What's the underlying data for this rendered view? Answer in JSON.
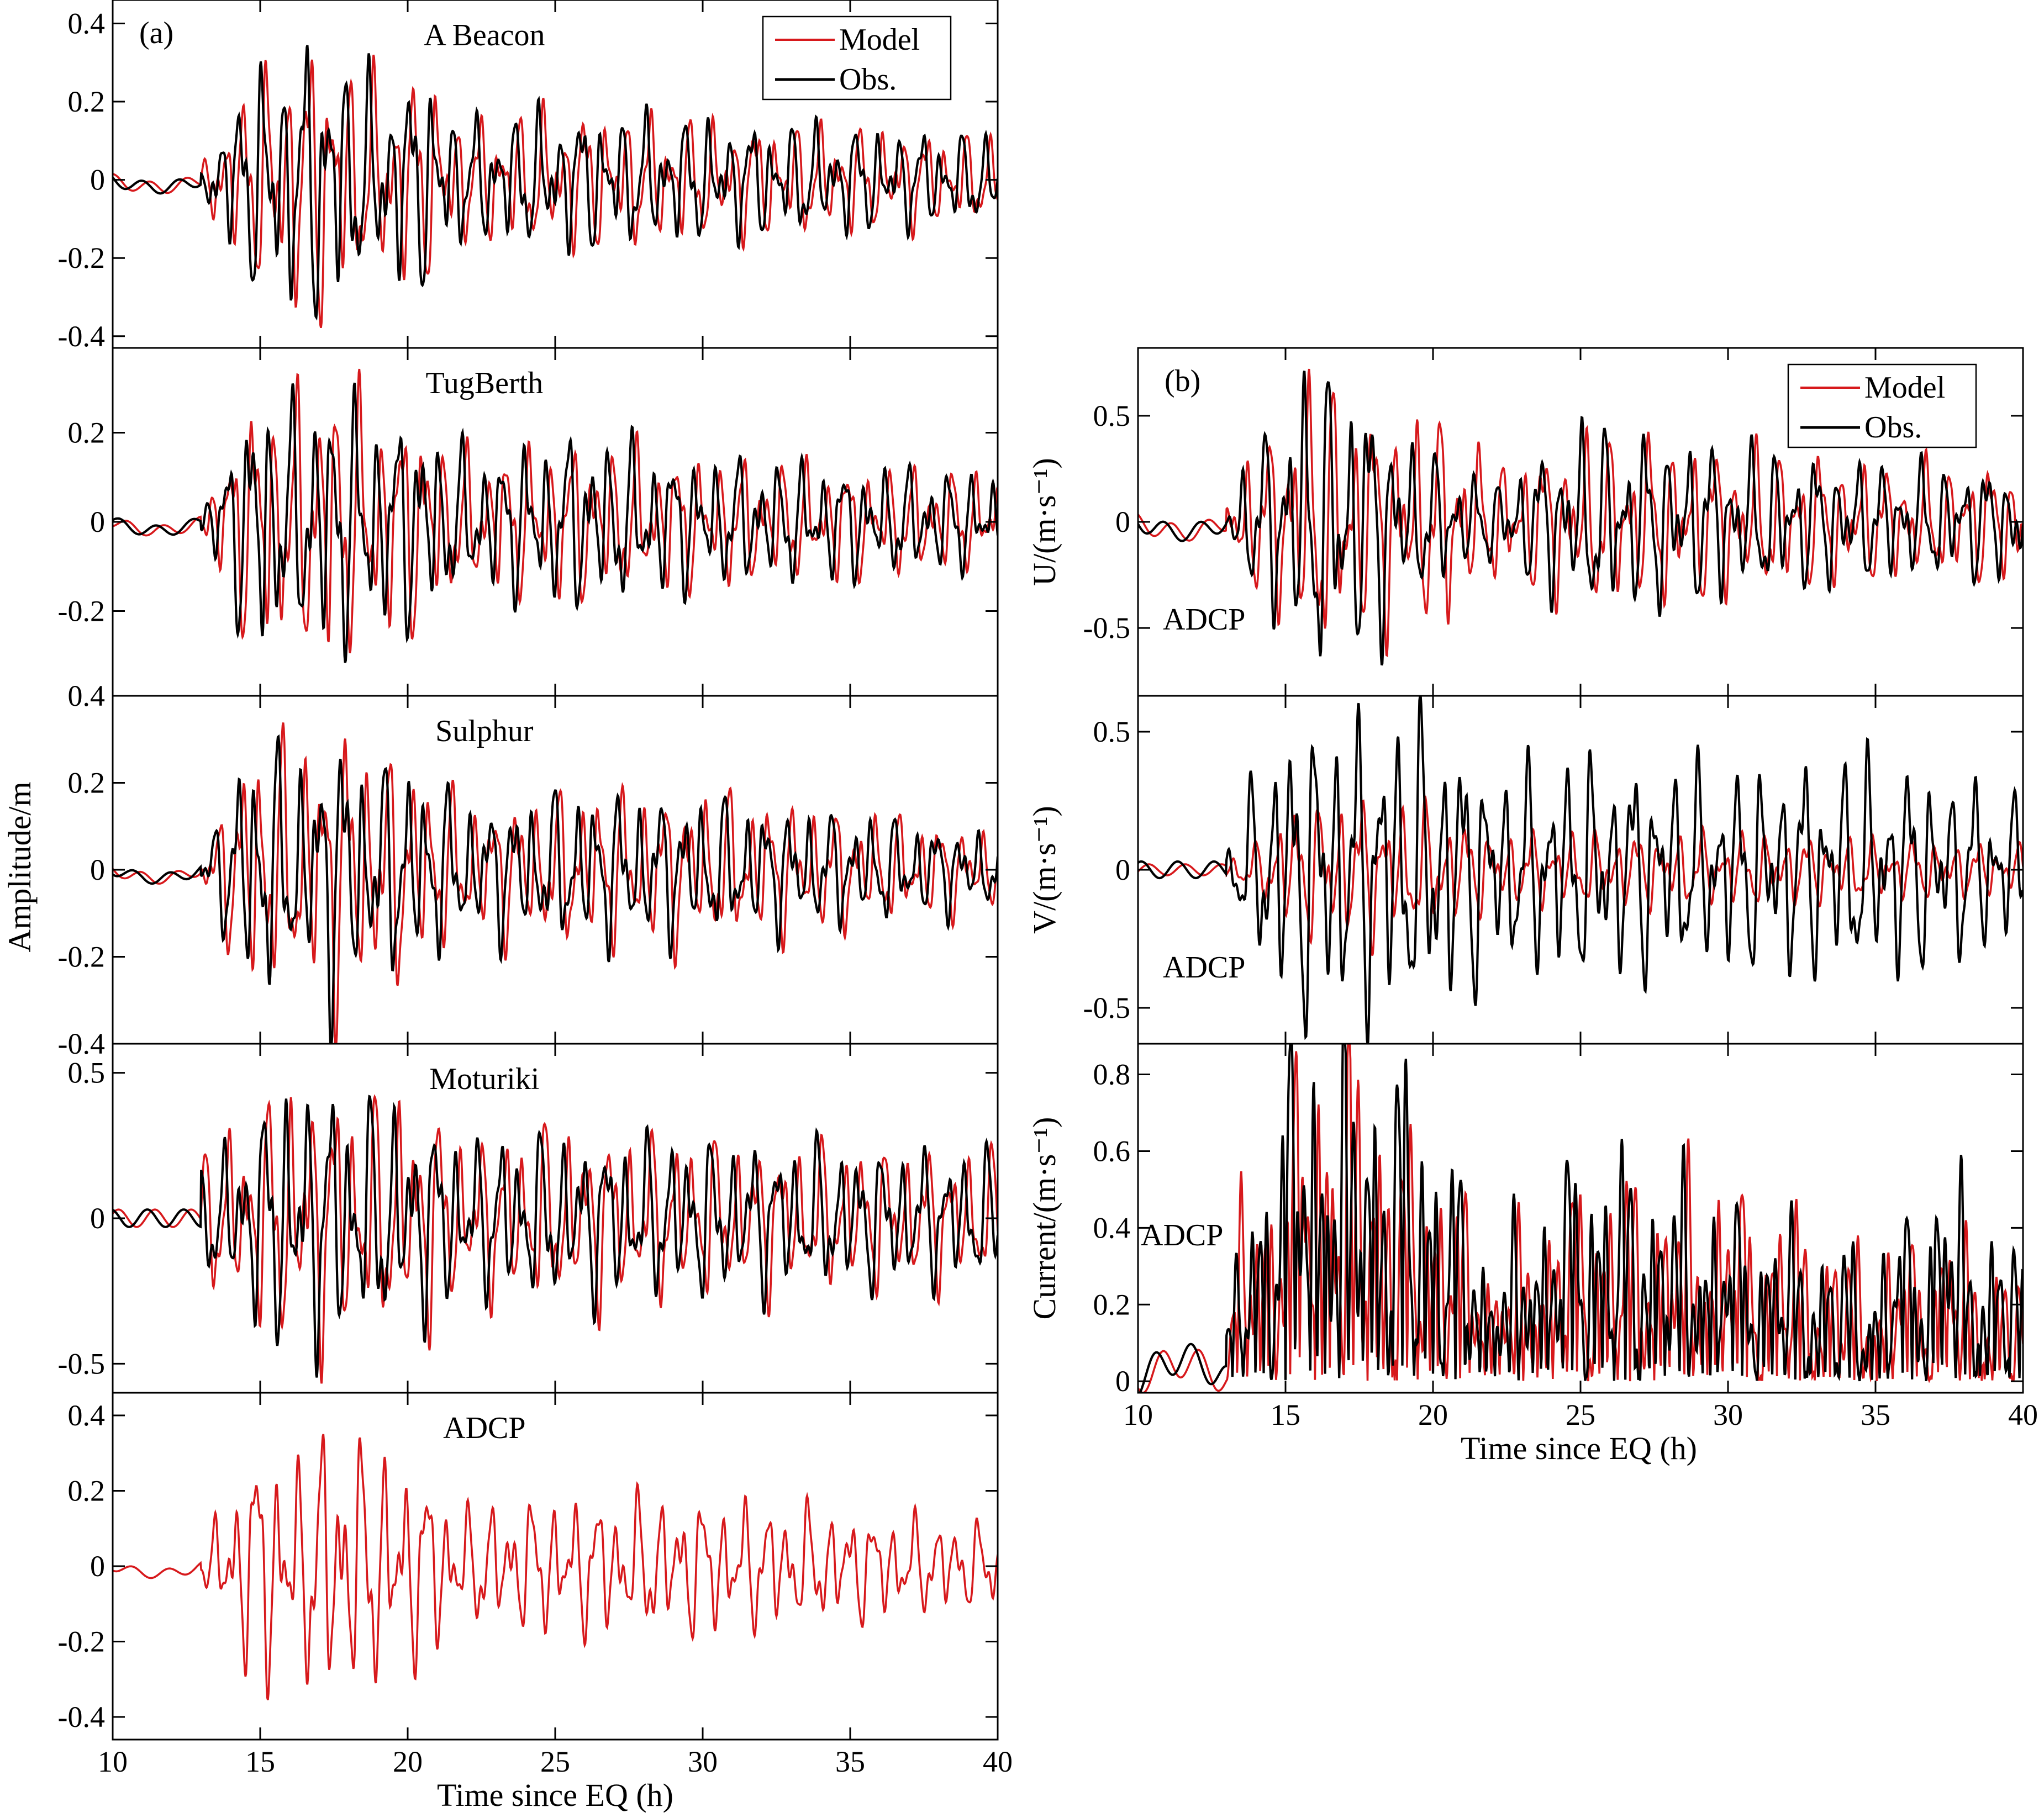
{
  "figure": {
    "colors": {
      "model": "#d7191c",
      "obs": "#000000"
    },
    "left_ylabel": "Amplitude/m",
    "left_xlabel": "Time since EQ (h)",
    "right_xlabel": "Time since EQ (h)"
  },
  "chart_data": [
    {
      "type": "line",
      "panel": "a",
      "tag": "(a)",
      "title": "A Beacon",
      "ylabel": "",
      "xlim": [
        10,
        40
      ],
      "ylim": [
        -0.43,
        0.46
      ],
      "yticks": [
        -0.4,
        -0.2,
        0,
        0.2,
        0.4
      ],
      "xticks": [
        10,
        15,
        20,
        25,
        30,
        35,
        40
      ],
      "show_xticklabels": false,
      "legend": {
        "position": "top-right",
        "entries": [
          "Model",
          "Obs."
        ]
      },
      "series": [
        {
          "name": "Model",
          "color": "#d7191c",
          "quiet_amp": 0.015,
          "quiet_offset": -0.02,
          "envelope": [
            [
              10,
              0.015
            ],
            [
              13,
              0.02
            ],
            [
              13.5,
              0.15
            ],
            [
              15,
              0.3
            ],
            [
              15.5,
              0.35
            ],
            [
              17.5,
              0.4
            ],
            [
              18.5,
              0.28
            ],
            [
              20.5,
              0.3
            ],
            [
              22,
              0.17
            ],
            [
              25,
              0.2
            ],
            [
              30,
              0.17
            ],
            [
              35,
              0.15
            ],
            [
              40,
              0.12
            ]
          ]
        },
        {
          "name": "Obs.",
          "color": "#000000",
          "quiet_amp": 0.015,
          "quiet_offset": -0.02,
          "envelope": [
            [
              10,
              0.015
            ],
            [
              13,
              0.02
            ],
            [
              13.5,
              0.15
            ],
            [
              15,
              0.33
            ],
            [
              15.5,
              0.35
            ],
            [
              17.5,
              0.4
            ],
            [
              18.5,
              0.28
            ],
            [
              20.5,
              0.3
            ],
            [
              22,
              0.17
            ],
            [
              25,
              0.2
            ],
            [
              30,
              0.17
            ],
            [
              35,
              0.15
            ],
            [
              40,
              0.12
            ]
          ]
        }
      ]
    },
    {
      "type": "line",
      "panel": "a",
      "tag": "",
      "title": "TugBerth",
      "ylabel": "",
      "xlim": [
        10,
        40
      ],
      "ylim": [
        -0.39,
        0.39
      ],
      "yticks": [
        -0.2,
        0,
        0.2
      ],
      "ytick_labels": [
        "-0.2",
        "0",
        "0.2"
      ],
      "xticks": [
        10,
        15,
        20,
        25,
        30,
        35,
        40
      ],
      "show_xticklabels": false,
      "series": [
        {
          "name": "Model",
          "color": "#d7191c",
          "quiet_amp": 0.012,
          "quiet_offset": -0.02,
          "envelope": [
            [
              10,
              0.012
            ],
            [
              13,
              0.03
            ],
            [
              13.5,
              0.12
            ],
            [
              15,
              0.35
            ],
            [
              16,
              0.3
            ],
            [
              17.5,
              0.38
            ],
            [
              18.5,
              0.3
            ],
            [
              20.5,
              0.26
            ],
            [
              22,
              0.17
            ],
            [
              26,
              0.2
            ],
            [
              30,
              0.16
            ],
            [
              40,
              0.12
            ]
          ]
        },
        {
          "name": "Obs.",
          "color": "#000000",
          "quiet_amp": 0.012,
          "quiet_offset": -0.02,
          "envelope": [
            [
              10,
              0.012
            ],
            [
              13,
              0.03
            ],
            [
              13.5,
              0.12
            ],
            [
              15,
              0.37
            ],
            [
              16,
              0.28
            ],
            [
              17.5,
              0.35
            ],
            [
              18.5,
              0.28
            ],
            [
              20.5,
              0.26
            ],
            [
              22,
              0.17
            ],
            [
              26,
              0.22
            ],
            [
              30,
              0.16
            ],
            [
              40,
              0.12
            ]
          ]
        }
      ]
    },
    {
      "type": "line",
      "panel": "a",
      "tag": "",
      "title": "Sulphur",
      "ylabel": "",
      "xlim": [
        10,
        40
      ],
      "ylim": [
        -0.4,
        0.4
      ],
      "yticks": [
        -0.4,
        -0.2,
        0,
        0.2,
        0.4
      ],
      "ytick_labels": [
        "-0.4",
        "-0.2",
        "0",
        "0.2",
        "0.4"
      ],
      "xticks": [
        10,
        15,
        20,
        25,
        30,
        35,
        40
      ],
      "show_xticklabels": false,
      "series": [
        {
          "name": "Model",
          "color": "#d7191c",
          "quiet_amp": 0.012,
          "quiet_offset": -0.02,
          "envelope": [
            [
              10,
              0.012
            ],
            [
              13,
              0.03
            ],
            [
              13.5,
              0.12
            ],
            [
              15,
              0.37
            ],
            [
              16,
              0.3
            ],
            [
              17.5,
              0.38
            ],
            [
              18.5,
              0.33
            ],
            [
              20.5,
              0.25
            ],
            [
              22,
              0.17
            ],
            [
              26,
              0.2
            ],
            [
              30,
              0.2
            ],
            [
              40,
              0.1
            ]
          ]
        },
        {
          "name": "Obs.",
          "color": "#000000",
          "quiet_amp": 0.012,
          "quiet_offset": -0.02,
          "envelope": [
            [
              10,
              0.012
            ],
            [
              13,
              0.03
            ],
            [
              13.5,
              0.12
            ],
            [
              15,
              0.38
            ],
            [
              16,
              0.25
            ],
            [
              17.5,
              0.38
            ],
            [
              18.5,
              0.28
            ],
            [
              20.5,
              0.25
            ],
            [
              22,
              0.17
            ],
            [
              26,
              0.2
            ],
            [
              30,
              0.18
            ],
            [
              40,
              0.1
            ]
          ]
        }
      ]
    },
    {
      "type": "line",
      "panel": "a",
      "tag": "",
      "title": "Moturiki",
      "ylabel": "",
      "xlim": [
        10,
        40
      ],
      "ylim": [
        -0.6,
        0.6
      ],
      "yticks": [
        -0.5,
        0,
        0.5
      ],
      "xticks": [
        10,
        15,
        20,
        25,
        30,
        35,
        40
      ],
      "show_xticklabels": false,
      "series": [
        {
          "name": "Model",
          "color": "#d7191c",
          "quiet_amp": 0.03,
          "quiet_offset": 0,
          "envelope": [
            [
              10,
              0.03
            ],
            [
              12.5,
              0.06
            ],
            [
              13,
              0.25
            ],
            [
              15,
              0.4
            ],
            [
              15.5,
              0.5
            ],
            [
              17.5,
              0.5
            ],
            [
              18.5,
              0.45
            ],
            [
              20.5,
              0.45
            ],
            [
              22,
              0.3
            ],
            [
              25,
              0.35
            ],
            [
              30,
              0.3
            ],
            [
              40,
              0.25
            ]
          ]
        },
        {
          "name": "Obs.",
          "color": "#000000",
          "quiet_amp": 0.03,
          "quiet_offset": 0,
          "envelope": [
            [
              10,
              0.03
            ],
            [
              12.5,
              0.06
            ],
            [
              13,
              0.2
            ],
            [
              15,
              0.4
            ],
            [
              15.5,
              0.52
            ],
            [
              17.5,
              0.5
            ],
            [
              18.5,
              0.45
            ],
            [
              20.5,
              0.4
            ],
            [
              22,
              0.3
            ],
            [
              25,
              0.32
            ],
            [
              30,
              0.3
            ],
            [
              40,
              0.25
            ]
          ]
        }
      ]
    },
    {
      "type": "line",
      "panel": "a",
      "tag": "",
      "title": "ADCP",
      "ylabel": "",
      "xlim": [
        10,
        40
      ],
      "ylim": [
        -0.46,
        0.46
      ],
      "yticks": [
        -0.4,
        -0.2,
        0,
        0.2,
        0.4
      ],
      "xticks": [
        10,
        15,
        20,
        25,
        30,
        35,
        40
      ],
      "show_xticklabels": true,
      "series": [
        {
          "name": "Model",
          "color": "#d7191c",
          "quiet_amp": 0.012,
          "quiet_offset": -0.02,
          "envelope": [
            [
              10,
              0.012
            ],
            [
              13,
              0.03
            ],
            [
              13.5,
              0.15
            ],
            [
              15,
              0.38
            ],
            [
              16,
              0.3
            ],
            [
              17.5,
              0.42
            ],
            [
              18.2,
              0.38
            ],
            [
              20.5,
              0.28
            ],
            [
              22,
              0.17
            ],
            [
              25,
              0.2
            ],
            [
              30,
              0.2
            ],
            [
              40,
              0.12
            ]
          ]
        }
      ]
    },
    {
      "type": "line",
      "panel": "b",
      "tag": "(b)",
      "title": "",
      "annotation": "ADCP",
      "ylabel": "U/(m·s⁻¹)",
      "xlim": [
        10,
        40
      ],
      "ylim": [
        -0.82,
        0.82
      ],
      "yticks": [
        -0.5,
        0,
        0.5
      ],
      "xticks": [
        10,
        15,
        20,
        25,
        30,
        35,
        40
      ],
      "show_xticklabels": false,
      "legend": {
        "position": "top-right",
        "entries": [
          "Model",
          "Obs."
        ]
      },
      "series": [
        {
          "name": "Model",
          "color": "#d7191c",
          "quiet_amp": 0.04,
          "quiet_offset": -0.05,
          "envelope": [
            [
              10,
              0.04
            ],
            [
              13,
              0.08
            ],
            [
              13.5,
              0.35
            ],
            [
              15,
              0.5
            ],
            [
              15.5,
              0.78
            ],
            [
              17.5,
              0.6
            ],
            [
              19,
              0.55
            ],
            [
              20.5,
              0.55
            ],
            [
              22,
              0.3
            ],
            [
              25,
              0.45
            ],
            [
              30,
              0.4
            ],
            [
              35,
              0.3
            ],
            [
              40,
              0.3
            ]
          ]
        },
        {
          "name": "Obs.",
          "color": "#000000",
          "quiet_amp": 0.04,
          "quiet_offset": -0.05,
          "envelope": [
            [
              10,
              0.04
            ],
            [
              13,
              0.08
            ],
            [
              13.5,
              0.3
            ],
            [
              15,
              0.6
            ],
            [
              15.5,
              0.78
            ],
            [
              17.5,
              0.75
            ],
            [
              19,
              0.45
            ],
            [
              20.5,
              0.3
            ],
            [
              22,
              0.2
            ],
            [
              25,
              0.5
            ],
            [
              30,
              0.4
            ],
            [
              35,
              0.3
            ],
            [
              40,
              0.3
            ]
          ]
        }
      ]
    },
    {
      "type": "line",
      "panel": "b",
      "tag": "",
      "title": "",
      "annotation": "ADCP",
      "ylabel": "V/(m·s⁻¹)",
      "xlim": [
        10,
        40
      ],
      "ylim": [
        -0.63,
        0.63
      ],
      "yticks": [
        -0.5,
        0,
        0.5
      ],
      "xticks": [
        10,
        15,
        20,
        25,
        30,
        35,
        40
      ],
      "show_xticklabels": false,
      "series": [
        {
          "name": "Model",
          "color": "#d7191c",
          "quiet_amp": 0.02,
          "quiet_offset": 0,
          "envelope": [
            [
              10,
              0.02
            ],
            [
              13,
              0.04
            ],
            [
              14,
              0.1
            ],
            [
              15,
              0.25
            ],
            [
              17,
              0.3
            ],
            [
              20,
              0.25
            ],
            [
              22,
              0.15
            ],
            [
              30,
              0.15
            ],
            [
              40,
              0.1
            ]
          ]
        },
        {
          "name": "Obs.",
          "color": "#000000",
          "quiet_amp": 0.03,
          "quiet_offset": 0,
          "envelope": [
            [
              10,
              0.05
            ],
            [
              13,
              0.08
            ],
            [
              13.5,
              0.25
            ],
            [
              15,
              0.6
            ],
            [
              17.5,
              0.62
            ],
            [
              19,
              0.62
            ],
            [
              20.5,
              0.58
            ],
            [
              22,
              0.4
            ],
            [
              25,
              0.45
            ],
            [
              30,
              0.4
            ],
            [
              35,
              0.45
            ],
            [
              40,
              0.3
            ]
          ]
        }
      ]
    },
    {
      "type": "line",
      "panel": "b",
      "tag": "",
      "title": "",
      "annotation": "ADCP",
      "ylabel": "Current/(m·s⁻¹)",
      "xlim": [
        10,
        40
      ],
      "ylim": [
        -0.03,
        0.88
      ],
      "yticks": [
        0,
        0.2,
        0.4,
        0.6,
        0.8
      ],
      "xticks": [
        10,
        15,
        20,
        25,
        30,
        35,
        40
      ],
      "show_xticklabels": true,
      "nonnegative": true,
      "series": [
        {
          "name": "Model",
          "color": "#d7191c",
          "quiet_amp": 0.04,
          "quiet_offset": 0.05,
          "envelope": [
            [
              10,
              0.06
            ],
            [
              13,
              0.1
            ],
            [
              13.5,
              0.45
            ],
            [
              15,
              0.6
            ],
            [
              15.5,
              0.85
            ],
            [
              17.5,
              0.85
            ],
            [
              19,
              0.6
            ],
            [
              20.5,
              0.55
            ],
            [
              22,
              0.3
            ],
            [
              25,
              0.5
            ],
            [
              30,
              0.5
            ],
            [
              35,
              0.3
            ],
            [
              37,
              0.4
            ],
            [
              40,
              0.25
            ]
          ]
        },
        {
          "name": "Obs.",
          "color": "#000000",
          "quiet_amp": 0.04,
          "quiet_offset": 0.06,
          "envelope": [
            [
              10,
              0.1
            ],
            [
              13,
              0.15
            ],
            [
              13.5,
              0.35
            ],
            [
              15,
              0.85
            ],
            [
              15.5,
              0.88
            ],
            [
              17.5,
              0.85
            ],
            [
              19,
              0.8
            ],
            [
              20.5,
              0.6
            ],
            [
              22,
              0.3
            ],
            [
              25,
              0.6
            ],
            [
              30,
              0.45
            ],
            [
              35,
              0.3
            ],
            [
              37,
              0.55
            ],
            [
              40,
              0.3
            ]
          ]
        }
      ]
    }
  ]
}
